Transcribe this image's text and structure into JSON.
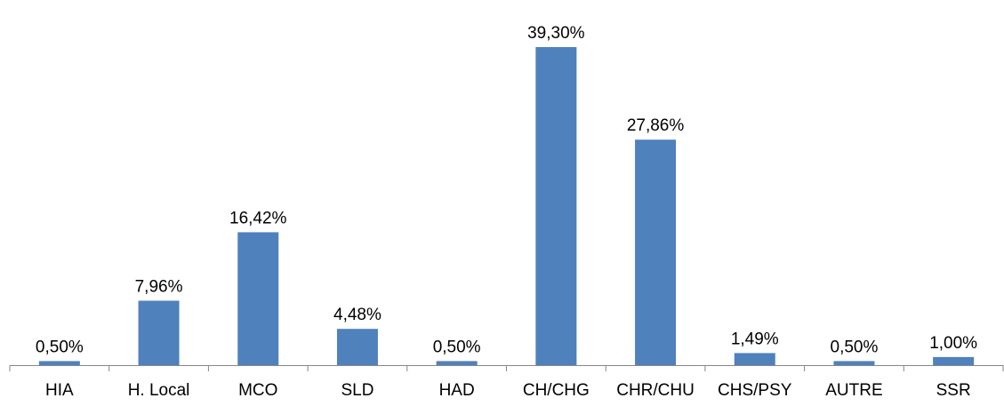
{
  "chart_data": {
    "type": "bar",
    "categories": [
      "HIA",
      "H. Local",
      "MCO",
      "SLD",
      "HAD",
      "CH/CHG",
      "CHR/CHU",
      "CHS/PSY",
      "AUTRE",
      "SSR"
    ],
    "values": [
      0.5,
      7.96,
      16.42,
      4.48,
      0.5,
      39.3,
      27.86,
      1.49,
      0.5,
      1.0
    ],
    "data_labels": [
      "0,50%",
      "7,96%",
      "16,42%",
      "4,48%",
      "0,50%",
      "39,30%",
      "27,86%",
      "1,49%",
      "0,50%",
      "1,00%"
    ],
    "title": "",
    "xlabel": "",
    "ylabel": "",
    "ylim": [
      0,
      39.3
    ],
    "grid": false,
    "legend": "none",
    "bar_color": "#4f81bd",
    "axis_color": "#868686"
  }
}
